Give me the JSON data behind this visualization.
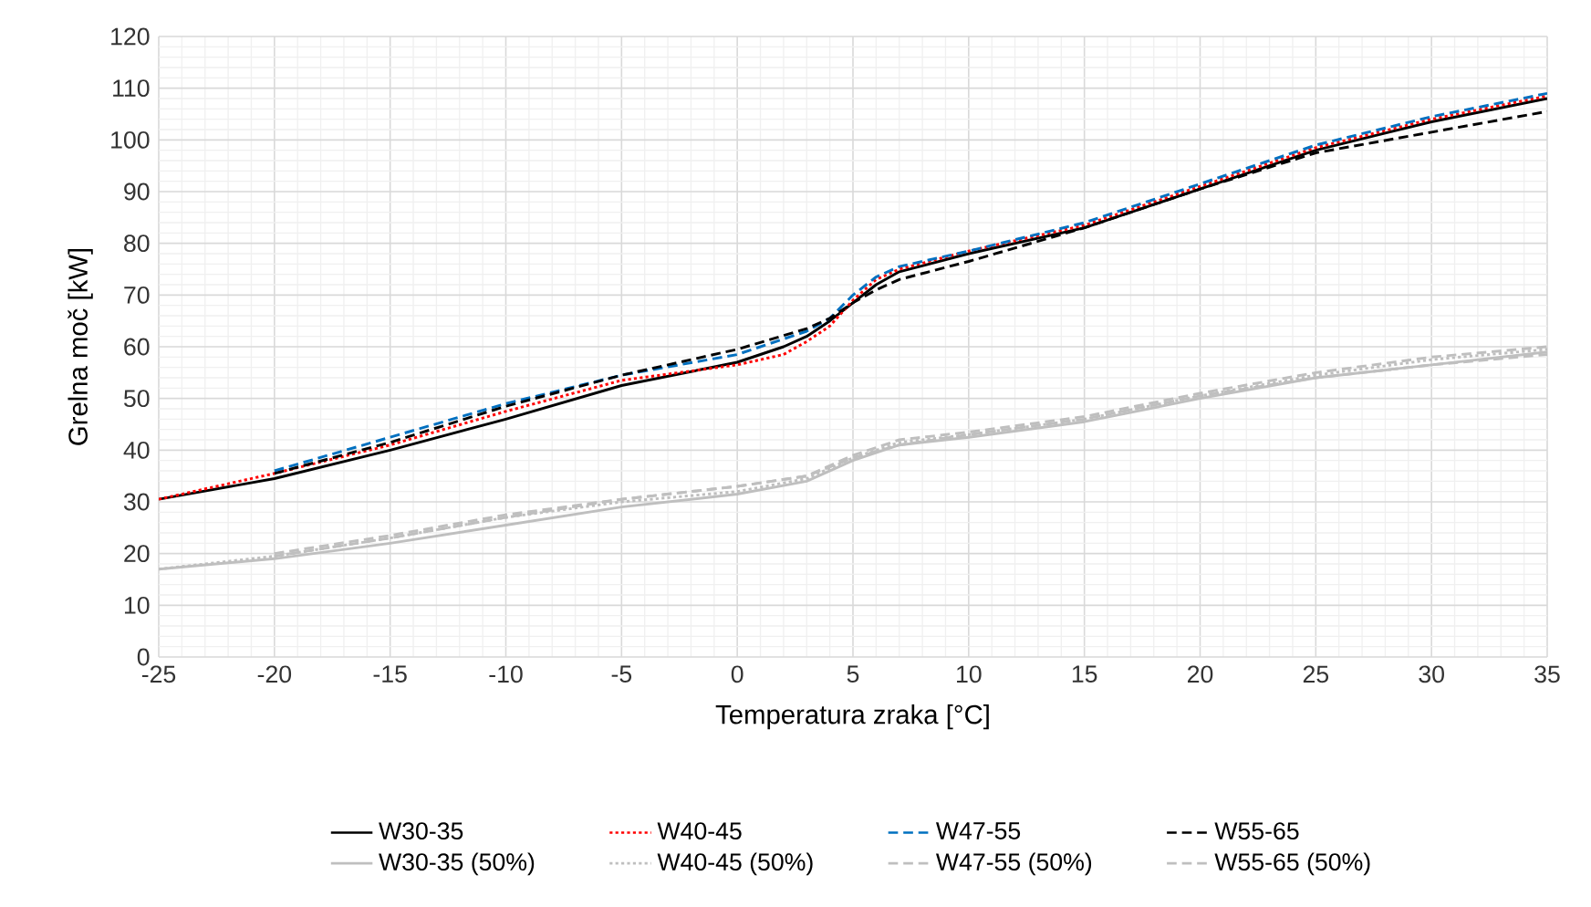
{
  "chart_data": {
    "type": "line",
    "xlabel": "Temperatura zraka [°C]",
    "ylabel": "Grelna moč [kW]",
    "xlim": [
      -25,
      35
    ],
    "xticks": [
      -25,
      -20,
      -15,
      -10,
      -5,
      0,
      5,
      10,
      15,
      20,
      25,
      30,
      35
    ],
    "ylim": [
      0,
      120
    ],
    "yticks": [
      0,
      10,
      20,
      30,
      40,
      50,
      60,
      70,
      80,
      90,
      100,
      110,
      120
    ],
    "grid": true,
    "legend": "bottom",
    "marker": "none",
    "series": [
      {
        "name": "W30-35",
        "color": "#000000",
        "line_style": "solid",
        "x": [
          -25,
          -20,
          -15,
          -10,
          -5,
          0,
          2,
          3,
          4,
          5,
          6,
          7,
          10,
          15,
          20,
          25,
          30,
          35
        ],
        "values": [
          30.5,
          34.5,
          40,
          46,
          52.5,
          57,
          60,
          62,
          65,
          68.5,
          72,
          74.5,
          78,
          83,
          90.5,
          98,
          103.5,
          108
        ]
      },
      {
        "name": "W40-45",
        "color": "#ff0000",
        "line_style": "dotted",
        "x": [
          -25,
          -20,
          -15,
          -10,
          -5,
          0,
          2,
          3,
          4,
          5,
          6,
          7,
          10,
          15,
          20,
          25,
          30,
          35
        ],
        "values": [
          30.5,
          35.5,
          41,
          47.5,
          53.5,
          56.5,
          58.5,
          61,
          64,
          69,
          73,
          75,
          78.5,
          83.5,
          91,
          98.5,
          104,
          108.5
        ]
      },
      {
        "name": "W47-55",
        "color": "#0070c0",
        "line_style": "dashed",
        "x": [
          -20,
          -15,
          -10,
          -5,
          0,
          3,
          4,
          5,
          6,
          7,
          10,
          15,
          20,
          25,
          30,
          35
        ],
        "values": [
          36,
          42.5,
          49,
          54.5,
          58.5,
          63,
          65.5,
          70,
          73.5,
          75.5,
          78.5,
          84,
          91.5,
          99,
          104.5,
          109
        ]
      },
      {
        "name": "W55-65",
        "color": "#000000",
        "line_style": "dashed",
        "x": [
          -20,
          -15,
          -10,
          -5,
          0,
          3,
          4,
          5,
          6,
          7,
          10,
          15,
          20,
          25,
          30,
          35
        ],
        "values": [
          35.5,
          41.5,
          48.5,
          54.5,
          59.5,
          63.5,
          65.5,
          68.5,
          71,
          73,
          76.5,
          83,
          90.5,
          97.5,
          101.5,
          105.5
        ]
      },
      {
        "name": "W30-35 (50%)",
        "color": "#bfbfbf",
        "line_style": "solid",
        "x": [
          -25,
          -20,
          -15,
          -10,
          -5,
          0,
          3,
          5,
          7,
          10,
          15,
          20,
          25,
          30,
          35
        ],
        "values": [
          17,
          19,
          22,
          25.5,
          29,
          31.5,
          34,
          38,
          41,
          42.5,
          45.5,
          50,
          54,
          56.5,
          59
        ]
      },
      {
        "name": "W40-45 (50%)",
        "color": "#bfbfbf",
        "line_style": "dotted",
        "x": [
          -25,
          -20,
          -15,
          -10,
          -5,
          0,
          3,
          5,
          7,
          10,
          15,
          20,
          25,
          30,
          35
        ],
        "values": [
          17,
          19.5,
          23,
          27,
          30,
          32,
          34.5,
          38.5,
          41.5,
          43,
          46,
          50.5,
          54.5,
          57.5,
          59.5
        ]
      },
      {
        "name": "W47-55 (50%)",
        "color": "#bfbfbf",
        "line_style": "dashed",
        "x": [
          -20,
          -15,
          -10,
          -5,
          0,
          3,
          5,
          7,
          10,
          15,
          20,
          25,
          30,
          35
        ],
        "values": [
          20,
          23.5,
          27.5,
          30.5,
          33,
          35,
          39,
          42,
          43.5,
          46.5,
          51,
          55,
          58,
          60
        ]
      },
      {
        "name": "W55-65 (50%)",
        "color": "#bfbfbf",
        "line_style": "dashed",
        "x": [
          -20,
          -15,
          -10,
          -5,
          0,
          3,
          5,
          7,
          10,
          15,
          20,
          25,
          30,
          35
        ],
        "values": [
          19.5,
          23,
          27,
          30.5,
          33,
          35,
          38.5,
          41,
          43,
          46,
          50.5,
          54,
          56.5,
          58.5
        ]
      }
    ]
  }
}
